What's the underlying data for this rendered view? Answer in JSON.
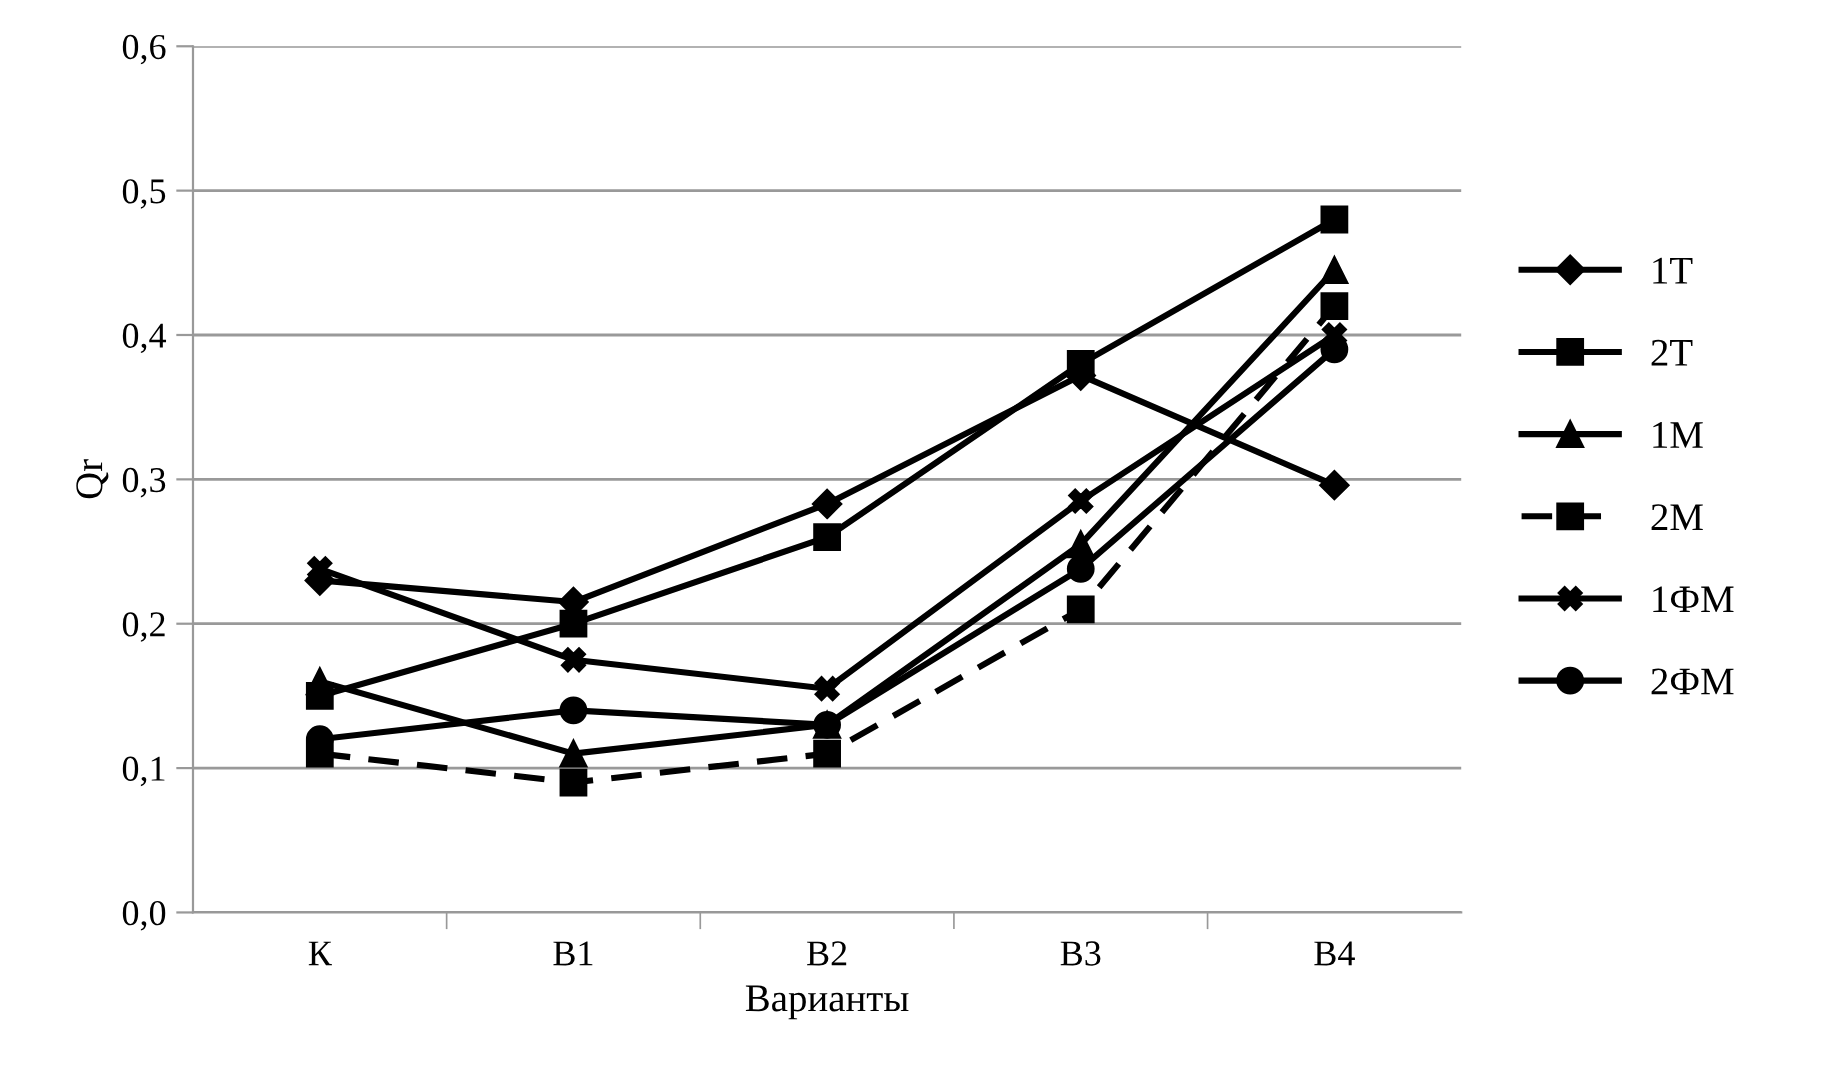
{
  "chart_data": {
    "type": "line",
    "xlabel": "Варианты",
    "ylabel": "Qr",
    "categories": [
      "К",
      "В1",
      "В2",
      "В3",
      "В4"
    ],
    "ylim": [
      0,
      0.6
    ],
    "yticks": [
      {
        "value": 0,
        "label": "0,0"
      },
      {
        "value": 0.1,
        "label": "0,1"
      },
      {
        "value": 0.2,
        "label": "0,2"
      },
      {
        "value": 0.3,
        "label": "0,3"
      },
      {
        "value": 0.4,
        "label": "0,4"
      },
      {
        "value": 0.5,
        "label": "0,5"
      },
      {
        "value": 0.6,
        "label": "0,6"
      }
    ],
    "grid": "y",
    "legend": "right",
    "series": [
      {
        "name": "1Т",
        "color": "#000000",
        "marker": "diamond",
        "line_style": "solid",
        "values": [
          0.23,
          0.215,
          0.283,
          0.372,
          0.296
        ]
      },
      {
        "name": "2Т",
        "color": "#000000",
        "marker": "square",
        "line_style": "solid",
        "values": [
          0.15,
          0.2,
          0.26,
          0.38,
          0.48
        ]
      },
      {
        "name": "1М",
        "color": "#000000",
        "marker": "triangle",
        "line_style": "solid",
        "values": [
          0.16,
          0.11,
          0.13,
          0.255,
          0.445
        ]
      },
      {
        "name": "2М",
        "color": "#000000",
        "marker": "square",
        "line_style": "dashed",
        "values": [
          0.11,
          0.09,
          0.11,
          0.21,
          0.42
        ]
      },
      {
        "name": "1ФМ",
        "color": "#000000",
        "marker": "cross",
        "line_style": "solid",
        "values": [
          0.238,
          0.175,
          0.155,
          0.285,
          0.4
        ]
      },
      {
        "name": "2ФМ",
        "color": "#000000",
        "marker": "circle",
        "line_style": "solid",
        "values": [
          0.12,
          0.14,
          0.13,
          0.238,
          0.39
        ]
      }
    ]
  }
}
